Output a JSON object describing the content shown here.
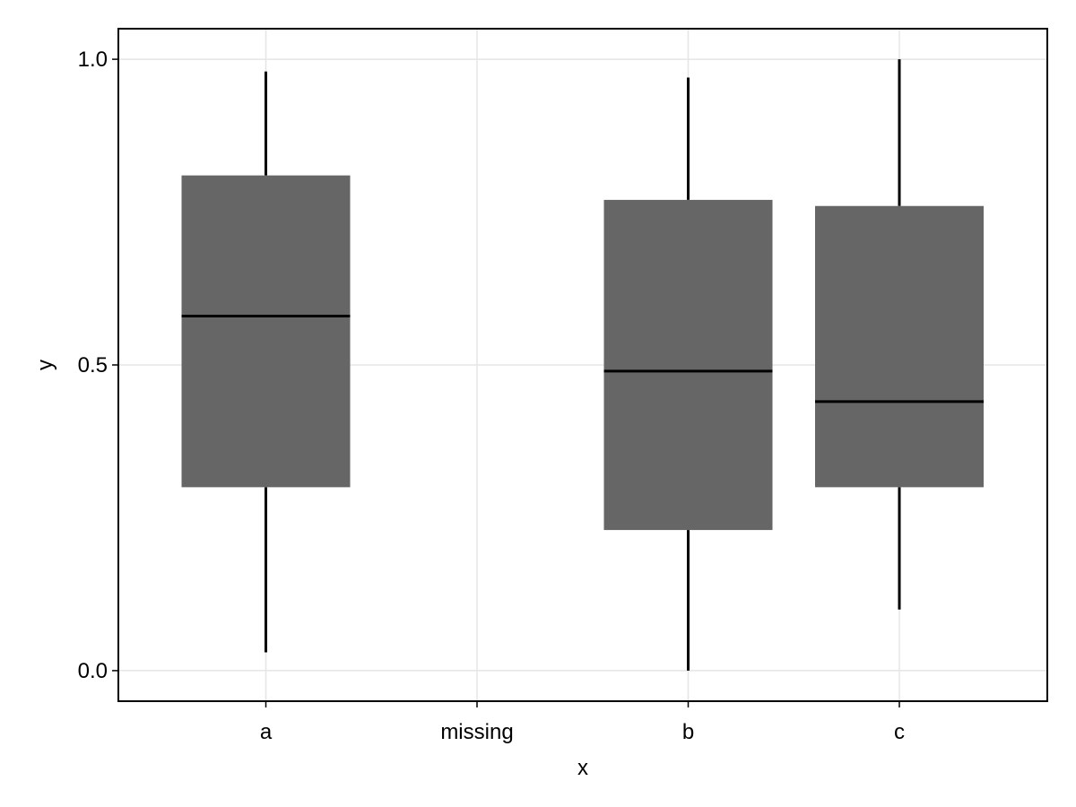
{
  "chart_data": {
    "type": "boxplot",
    "title": "",
    "xlabel": "x",
    "ylabel": "y",
    "categories": [
      "a",
      "missing",
      "b",
      "c"
    ],
    "boxes": [
      {
        "category": "a",
        "whisker_low": 0.03,
        "q1": 0.3,
        "median": 0.58,
        "q3": 0.81,
        "whisker_high": 0.98
      },
      {
        "category": "b",
        "whisker_low": 0.0,
        "q1": 0.23,
        "median": 0.49,
        "q3": 0.77,
        "whisker_high": 0.97
      },
      {
        "category": "c",
        "whisker_low": 0.1,
        "q1": 0.3,
        "median": 0.44,
        "q3": 0.76,
        "whisker_high": 1.0
      }
    ],
    "ylim": [
      -0.05,
      1.05
    ],
    "yticks": [
      0.0,
      0.5,
      1.0
    ],
    "ytick_labels": [
      "0.0",
      "0.5",
      "1.0"
    ],
    "grid": true,
    "colors": {
      "box_fill": "#666666",
      "median_line": "#000000",
      "whisker": "#000000",
      "grid": "#e5e5e5",
      "frame": "#000000"
    }
  }
}
